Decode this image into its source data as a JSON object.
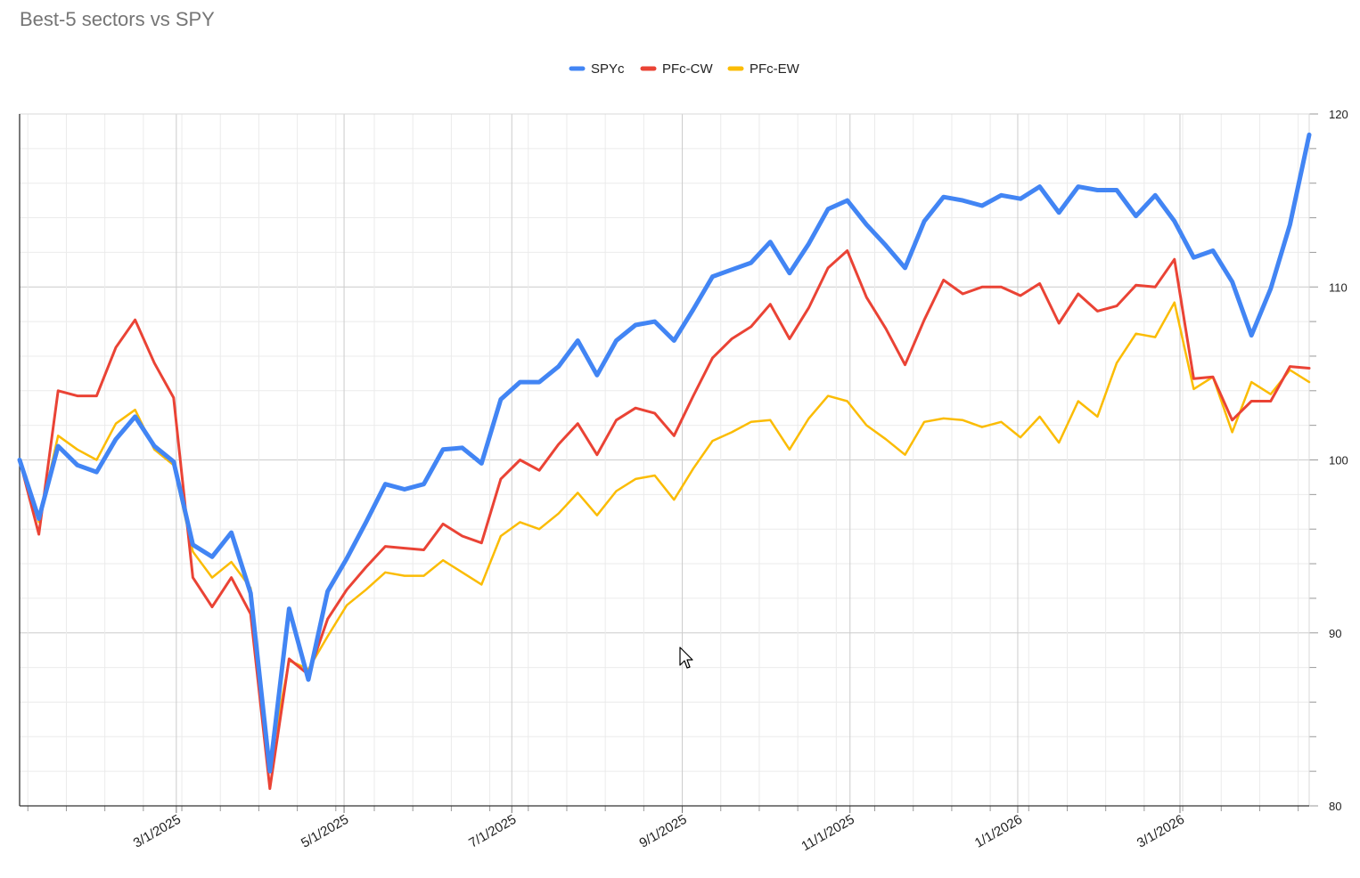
{
  "chart_data": {
    "type": "line",
    "title": "Best-5 sectors vs SPY",
    "xlabel": "",
    "ylabel": "",
    "ylim": [
      80,
      120
    ],
    "yticks": [
      80,
      90,
      100,
      110,
      120
    ],
    "xrange": [
      "2025-01-03",
      "2026-04-17"
    ],
    "x_tick_labels": [
      {
        "date": "2025-03-01",
        "label": "3/1/2025"
      },
      {
        "date": "2025-05-01",
        "label": "5/1/2025"
      },
      {
        "date": "2025-07-01",
        "label": "7/1/2025"
      },
      {
        "date": "2025-09-01",
        "label": "9/1/2025"
      },
      {
        "date": "2025-11-01",
        "label": "11/1/2025"
      },
      {
        "date": "2026-01-01",
        "label": "1/1/2026"
      },
      {
        "date": "2026-03-01",
        "label": "3/1/2026"
      }
    ],
    "grid": true,
    "legend_position": "top-center",
    "x": [
      "2025-01-03",
      "2025-01-10",
      "2025-01-17",
      "2025-01-24",
      "2025-01-31",
      "2025-02-07",
      "2025-02-14",
      "2025-02-21",
      "2025-02-28",
      "2025-03-07",
      "2025-03-14",
      "2025-03-21",
      "2025-03-28",
      "2025-04-04",
      "2025-04-11",
      "2025-04-18",
      "2025-04-25",
      "2025-05-02",
      "2025-05-09",
      "2025-05-16",
      "2025-05-23",
      "2025-05-30",
      "2025-06-06",
      "2025-06-13",
      "2025-06-20",
      "2025-06-27",
      "2025-07-04",
      "2025-07-11",
      "2025-07-18",
      "2025-07-25",
      "2025-08-01",
      "2025-08-08",
      "2025-08-15",
      "2025-08-22",
      "2025-08-29",
      "2025-09-05",
      "2025-09-12",
      "2025-09-19",
      "2025-09-26",
      "2025-10-03",
      "2025-10-10",
      "2025-10-17",
      "2025-10-24",
      "2025-10-31",
      "2025-11-07",
      "2025-11-14",
      "2025-11-21",
      "2025-11-28",
      "2025-12-05",
      "2025-12-12",
      "2025-12-19",
      "2025-12-26",
      "2026-01-02",
      "2026-01-09",
      "2026-01-16",
      "2026-01-23",
      "2026-01-30",
      "2026-02-06",
      "2026-02-13",
      "2026-02-20",
      "2026-02-27",
      "2026-03-06",
      "2026-03-13",
      "2026-03-20",
      "2026-03-27",
      "2026-04-03",
      "2026-04-10",
      "2026-04-17"
    ],
    "series": [
      {
        "name": "SPYc",
        "color": "#4285F4",
        "width": 5,
        "values": [
          100.0,
          96.6,
          100.8,
          99.7,
          99.3,
          101.2,
          102.5,
          100.8,
          99.9,
          95.1,
          94.4,
          95.8,
          92.3,
          82.0,
          91.4,
          87.3,
          92.4,
          94.3,
          96.4,
          98.6,
          98.3,
          98.6,
          100.6,
          100.7,
          99.8,
          103.5,
          104.5,
          104.5,
          105.4,
          106.9,
          104.9,
          106.9,
          107.8,
          108.0,
          106.9,
          108.7,
          110.6,
          111.0,
          111.4,
          112.6,
          110.8,
          112.5,
          114.5,
          115.0,
          113.6,
          112.4,
          111.1,
          113.8,
          115.2,
          115.0,
          114.7,
          115.3,
          115.1,
          115.8,
          114.3,
          115.8,
          115.6,
          115.6,
          114.1,
          115.3,
          113.8,
          111.7,
          112.1,
          110.3,
          107.2,
          109.9,
          113.6,
          118.8
        ]
      },
      {
        "name": "PFc-CW",
        "color": "#EA4335",
        "width": 3,
        "values": [
          100.0,
          95.7,
          104.0,
          103.7,
          103.7,
          106.5,
          108.1,
          105.6,
          103.6,
          93.2,
          91.5,
          93.2,
          91.1,
          81.0,
          88.5,
          87.6,
          90.8,
          92.5,
          93.8,
          95.0,
          94.9,
          94.8,
          96.3,
          95.6,
          95.2,
          98.9,
          100.0,
          99.4,
          100.9,
          102.1,
          100.3,
          102.3,
          103.0,
          102.7,
          101.4,
          103.7,
          105.9,
          107.0,
          107.7,
          109.0,
          107.0,
          108.8,
          111.1,
          112.1,
          109.4,
          107.6,
          105.5,
          108.1,
          110.4,
          109.6,
          110.0,
          110.0,
          109.5,
          110.2,
          107.9,
          109.6,
          108.6,
          108.9,
          110.1,
          110.0,
          111.6,
          104.7,
          104.8,
          102.3,
          103.4,
          103.4,
          105.4,
          105.3
        ]
      },
      {
        "name": "PFc-EW",
        "color": "#FBBC04",
        "width": 2.5,
        "values": [
          100.0,
          96.4,
          101.4,
          100.6,
          100.0,
          102.1,
          102.9,
          100.6,
          99.7,
          94.7,
          93.2,
          94.1,
          92.6,
          82.4,
          88.4,
          87.9,
          89.8,
          91.6,
          92.5,
          93.5,
          93.3,
          93.3,
          94.2,
          93.5,
          92.8,
          95.6,
          96.4,
          96.0,
          96.9,
          98.1,
          96.8,
          98.2,
          98.9,
          99.1,
          97.7,
          99.5,
          101.1,
          101.6,
          102.2,
          102.3,
          100.6,
          102.4,
          103.7,
          103.4,
          102.0,
          101.2,
          100.3,
          102.2,
          102.4,
          102.3,
          101.9,
          102.2,
          101.3,
          102.5,
          101.0,
          103.4,
          102.5,
          105.6,
          107.3,
          107.1,
          109.1,
          104.1,
          104.8,
          101.6,
          104.5,
          103.8,
          105.2,
          104.5
        ]
      }
    ]
  }
}
